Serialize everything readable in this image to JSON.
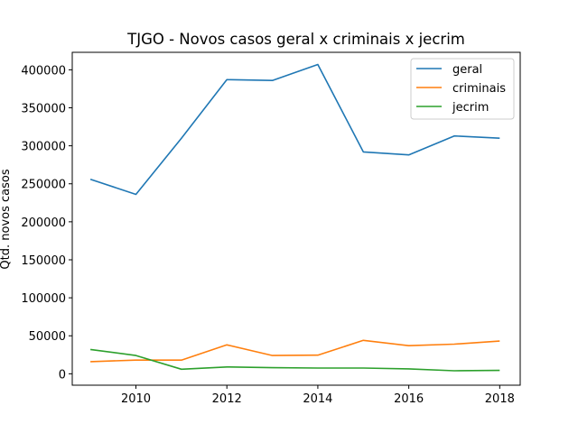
{
  "chart_data": {
    "type": "line",
    "title": "TJGO - Novos casos geral x criminais x jecrim",
    "xlabel": "",
    "ylabel": "Qtd. novos casos",
    "x": [
      2009,
      2010,
      2011,
      2012,
      2013,
      2014,
      2015,
      2016,
      2017,
      2018
    ],
    "xlim": [
      2008.6,
      2018.45
    ],
    "ylim": [
      -15000,
      423000
    ],
    "xticks": [
      2010,
      2012,
      2014,
      2016,
      2018
    ],
    "yticks": [
      0,
      50000,
      100000,
      150000,
      200000,
      250000,
      300000,
      350000,
      400000
    ],
    "grid": false,
    "legend": "top-right",
    "series": [
      {
        "name": "geral",
        "color": "#1f77b4",
        "values": [
          256000,
          236000,
          310000,
          387000,
          386000,
          407000,
          292000,
          288000,
          313000,
          310000
        ]
      },
      {
        "name": "criminais",
        "color": "#ff7f0e",
        "values": [
          16000,
          18000,
          18000,
          38000,
          24000,
          24500,
          44000,
          37000,
          39000,
          43000
        ]
      },
      {
        "name": "jecrim",
        "color": "#2ca02c",
        "values": [
          32000,
          24000,
          6000,
          9000,
          8000,
          7500,
          7500,
          6500,
          4000,
          4500
        ]
      }
    ]
  }
}
